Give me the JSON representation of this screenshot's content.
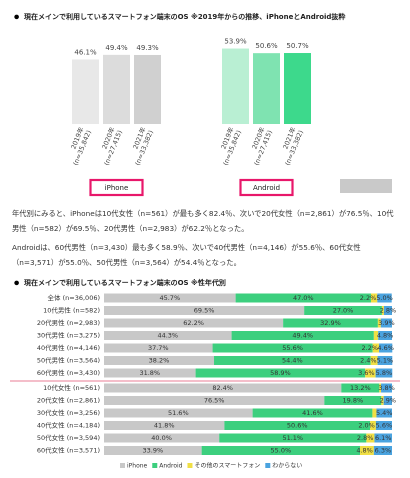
{
  "chart_data": [
    {
      "type": "bar",
      "title": "現在メインで利用しているスマートフォン端末のOS ※2019年からの推移、iPhoneとAndroid抜粋",
      "categories": [
        "2019年",
        "2020年",
        "2021年"
      ],
      "category_notes": [
        "(n=35,842)",
        "(n=27,415)",
        "(n=33,382)"
      ],
      "ylim": [
        0,
        60
      ],
      "series": [
        {
          "name": "iPhone",
          "colors": [
            "#e8e8e8",
            "#dcdcdc",
            "#d0d0d0"
          ],
          "values": [
            46.1,
            49.4,
            49.3
          ],
          "value_labels": [
            "46.1%",
            "49.4%",
            "49.3%"
          ]
        },
        {
          "name": "Android",
          "colors": [
            "#b9efd3",
            "#7fe3b1",
            "#3dd98c"
          ],
          "values": [
            53.9,
            50.6,
            50.7
          ],
          "value_labels": [
            "53.9%",
            "50.6%",
            "50.7%"
          ]
        }
      ]
    },
    {
      "type": "stackedbar",
      "title": "現在メインで利用しているスマートフォン端末のOS ※性年代別",
      "categories": [
        "全体 (n=36,006)",
        "10代男性 (n=582)",
        "20代男性 (n=2,983)",
        "30代男性 (n=3,275)",
        "40代男性 (n=4,146)",
        "50代男性 (n=3,564)",
        "60代男性 (n=3,430)",
        "10代女性 (n=561)",
        "20代女性 (n=2,861)",
        "30代女性 (n=3,256)",
        "40代女性 (n=4,184)",
        "50代女性 (n=3,594)",
        "60代女性 (n=3,571)"
      ],
      "xlim": [
        0,
        100
      ],
      "series": [
        {
          "name": "iPhone",
          "color": "#c8c8c8",
          "values": [
            45.7,
            69.5,
            62.2,
            44.3,
            37.7,
            38.2,
            31.8,
            82.4,
            76.5,
            51.6,
            41.8,
            40.0,
            33.9
          ],
          "value_labels": [
            "45.7%",
            "69.5%",
            "62.2%",
            "44.3%",
            "37.7%",
            "38.2%",
            "31.8%",
            "82.4%",
            "76.5%",
            "51.6%",
            "41.8%",
            "40.0%",
            "33.9%"
          ]
        },
        {
          "name": "Android",
          "color": "#3ccf7e",
          "values": [
            47.0,
            27.0,
            32.9,
            49.4,
            55.6,
            54.4,
            58.9,
            13.2,
            19.8,
            41.6,
            50.6,
            51.1,
            55.0
          ],
          "value_labels": [
            "47.0%",
            "27.0%",
            "32.9%",
            "49.4%",
            "55.6%",
            "54.4%",
            "58.9%",
            "13.2%",
            "19.8%",
            "41.6%",
            "50.6%",
            "51.1%",
            "55.0%"
          ]
        },
        {
          "name": "その他のスマートフォン",
          "color": "#f0df45",
          "values": [
            2.2,
            0.7,
            1.0,
            1.5,
            2.2,
            2.4,
            3.6,
            0.6,
            0.8,
            1.4,
            2.0,
            2.8,
            4.8
          ],
          "value_labels": [
            "2.2%",
            null,
            null,
            null,
            "2.2%",
            "2.4%",
            "3.6%",
            null,
            null,
            null,
            "2.0%",
            "2.8%",
            "4.8%"
          ]
        },
        {
          "name": "わからない",
          "color": "#4aa3df",
          "values": [
            5.0,
            2.8,
            3.9,
            4.8,
            4.6,
            5.1,
            5.8,
            3.8,
            2.9,
            5.4,
            5.6,
            6.1,
            6.3
          ],
          "value_labels": [
            "5.0%",
            "2.8%",
            "3.9%",
            "4.8%",
            "4.6%",
            "5.1%",
            "5.8%",
            "3.8%",
            "2.9%",
            "5.4%",
            "5.6%",
            "6.1%",
            "6.3%"
          ]
        }
      ]
    }
  ],
  "paragraphs": [
    "年代別にみると、iPhoneは10代女性（n=561）が最も多く82.4％、次いで20代女性（n=2,861）が76.5％、10代男性（n=582）が69.5％、20代男性（n=2,983）が62.2％となった。",
    "Androidは、60代男性（n=3,430）最も多く58.9％、次いで40代男性（n=4,146）が55.6％、60代女性（n=3,571）が55.0％、50代男性（n=3,564）が54.4％となった。"
  ]
}
